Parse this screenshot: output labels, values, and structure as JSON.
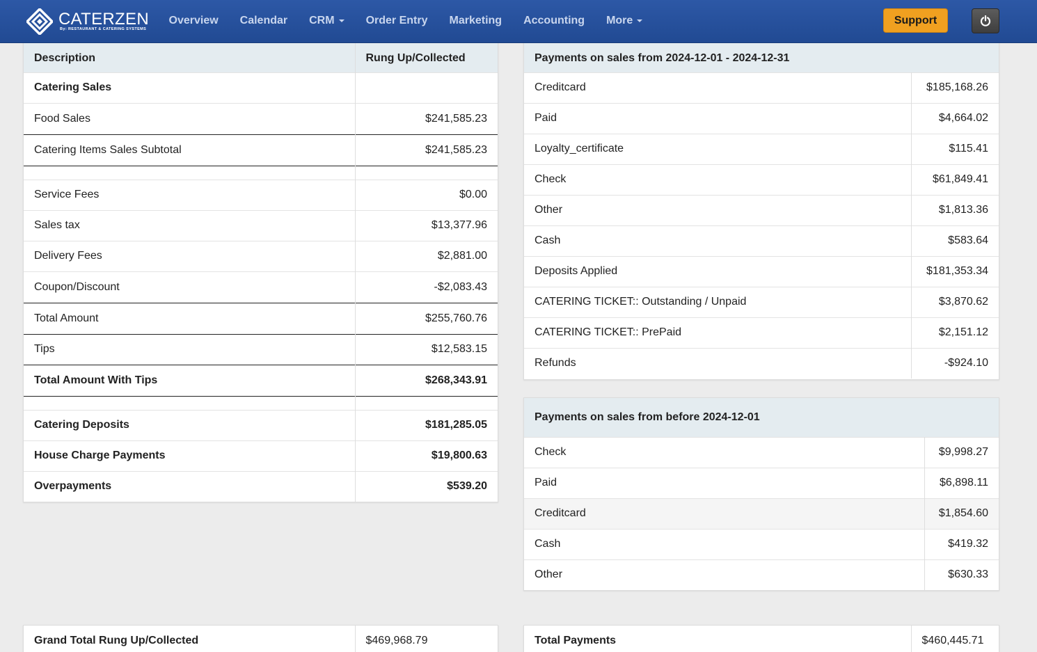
{
  "nav": {
    "logo_text": "CATERZEN",
    "logo_sub": "By: RESTAURANT & CATERING SYSTEMS",
    "items": [
      {
        "label": "Overview",
        "dropdown": false
      },
      {
        "label": "Calendar",
        "dropdown": false
      },
      {
        "label": "CRM",
        "dropdown": true
      },
      {
        "label": "Order Entry",
        "dropdown": false
      },
      {
        "label": "Marketing",
        "dropdown": false
      },
      {
        "label": "Accounting",
        "dropdown": false
      },
      {
        "label": "More",
        "dropdown": true
      }
    ],
    "support_label": "Support",
    "power_icon": "power-icon"
  },
  "sales": {
    "headers": [
      "Description",
      "Rung Up/Collected"
    ],
    "rows": [
      {
        "label": "Catering Sales",
        "value": "",
        "bold": true
      },
      {
        "label": "Food Sales",
        "value": "$241,585.23"
      },
      {
        "label": "Catering Items Sales Subtotal",
        "value": "$241,585.23"
      },
      {
        "label": "",
        "value": "",
        "spacer": true
      },
      {
        "label": "Service Fees",
        "value": "$0.00"
      },
      {
        "label": "Sales tax",
        "value": "$13,377.96"
      },
      {
        "label": "Delivery Fees",
        "value": "$2,881.00"
      },
      {
        "label": "Coupon/Discount",
        "value": "-$2,083.43"
      },
      {
        "label": "Total Amount",
        "value": "$255,760.76"
      },
      {
        "label": "Tips",
        "value": "$12,583.15"
      },
      {
        "label": "Total Amount With Tips",
        "value": "$268,343.91",
        "bold": true
      },
      {
        "label": "",
        "value": "",
        "spacer": true
      },
      {
        "label": "Catering Deposits",
        "value": "$181,285.05",
        "bold": true
      },
      {
        "label": "House Charge Payments",
        "value": "$19,800.63",
        "bold": true
      },
      {
        "label": "Overpayments",
        "value": "$539.20",
        "bold": true
      }
    ]
  },
  "payments_period": {
    "title": "Payments on sales from 2024-12-01 - 2024-12-31",
    "rows": [
      {
        "label": "Creditcard",
        "value": "$185,168.26"
      },
      {
        "label": "Paid",
        "value": "$4,664.02"
      },
      {
        "label": "Loyalty_certificate",
        "value": "$115.41"
      },
      {
        "label": "Check",
        "value": "$61,849.41"
      },
      {
        "label": "Other",
        "value": "$1,813.36"
      },
      {
        "label": "Cash",
        "value": "$583.64"
      },
      {
        "label": "Deposits Applied",
        "value": "$181,353.34"
      },
      {
        "label": "CATERING TICKET:: Outstanding / Unpaid",
        "value": "$3,870.62"
      },
      {
        "label": "CATERING TICKET:: PrePaid",
        "value": "$2,151.12"
      },
      {
        "label": "Refunds",
        "value": "-$924.10"
      }
    ]
  },
  "payments_before": {
    "title": "Payments on sales from before 2024-12-01",
    "rows": [
      {
        "label": "Check",
        "value": "$9,998.27"
      },
      {
        "label": "Paid",
        "value": "$6,898.11"
      },
      {
        "label": "Creditcard",
        "value": "$1,854.60"
      },
      {
        "label": "Cash",
        "value": "$419.32"
      },
      {
        "label": "Other",
        "value": "$630.33"
      }
    ]
  },
  "grand_total": {
    "label": "Grand Total Rung Up/Collected",
    "value": "$469,968.79"
  },
  "total_payments": {
    "label": "Total Payments",
    "value": "$460,445.71"
  }
}
